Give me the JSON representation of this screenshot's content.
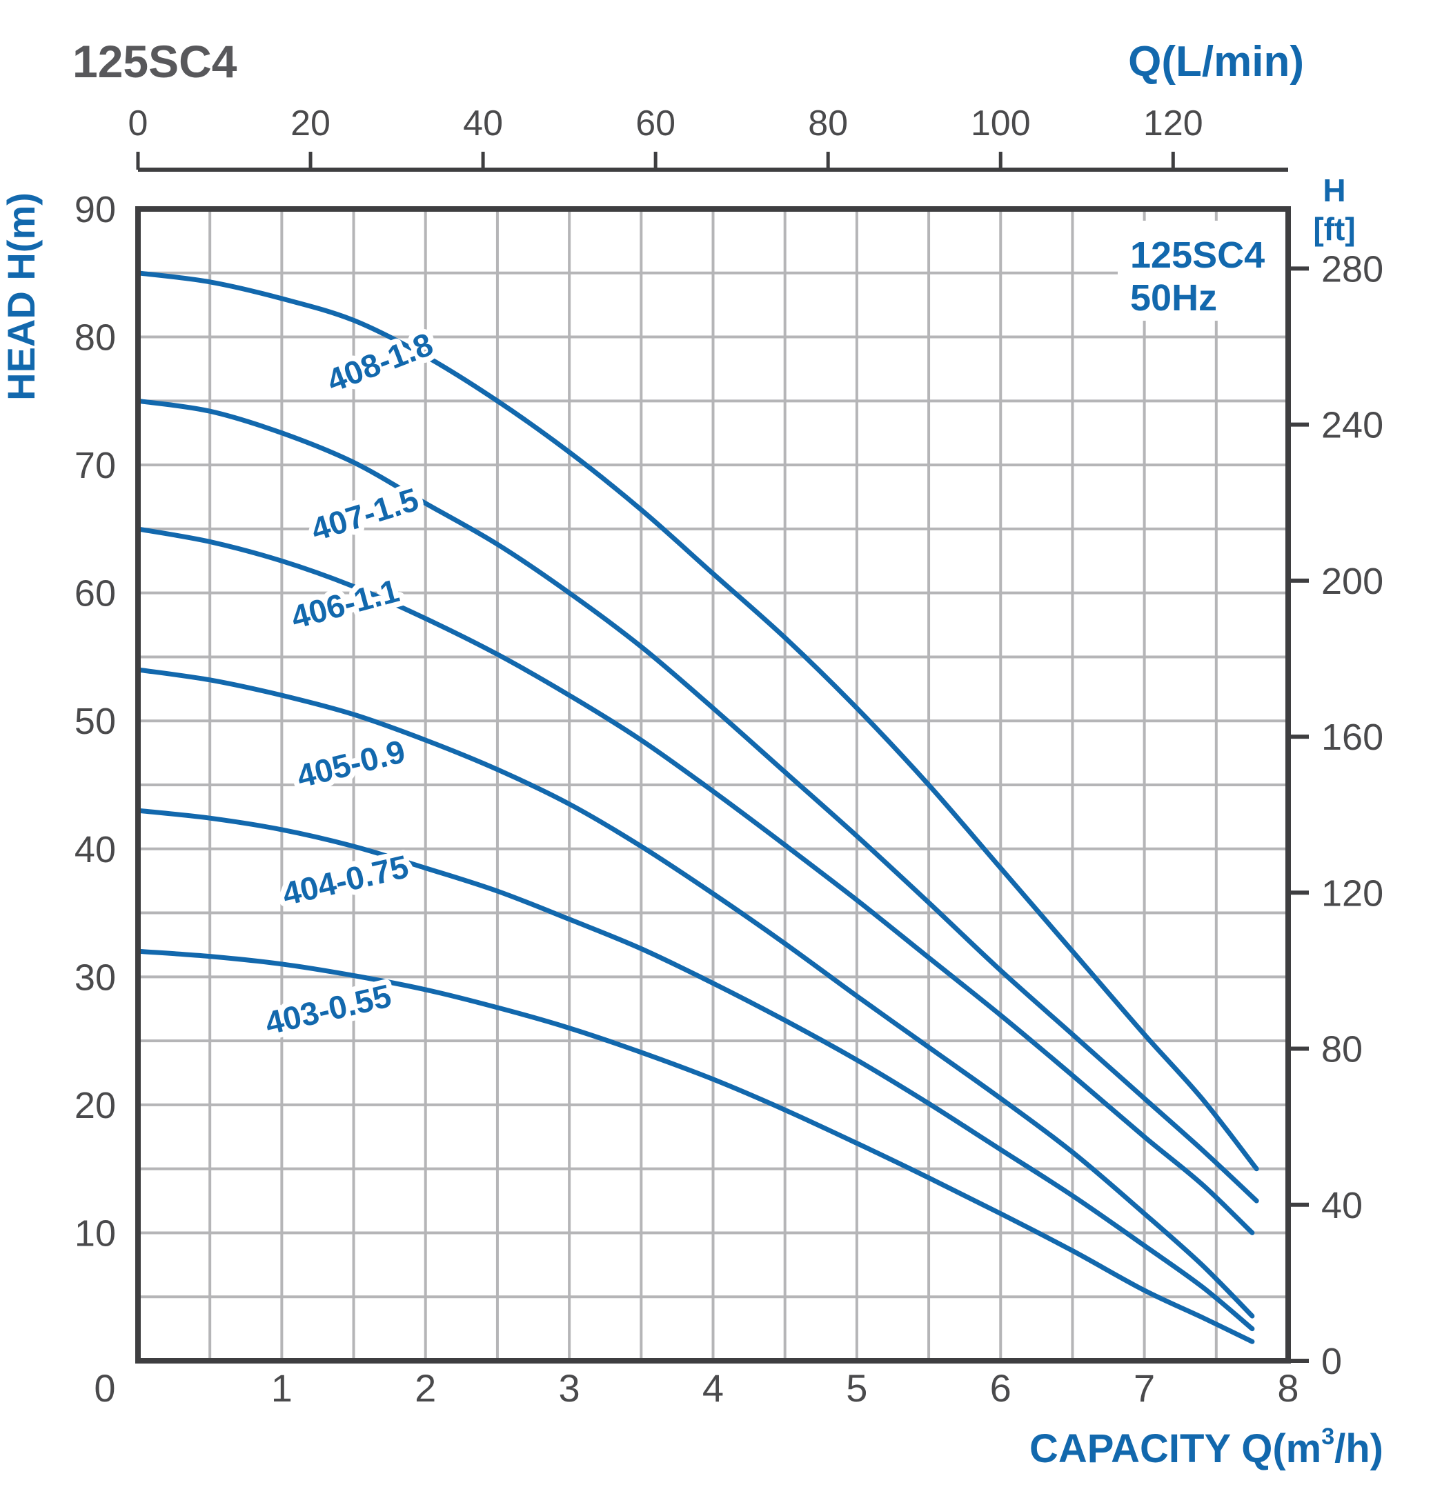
{
  "header": {
    "title": "125SC4",
    "top_axis_label": "Q(L/min)"
  },
  "axes_titles": {
    "left": "HEAD H(m)",
    "right_line1": "H",
    "right_line2": "[ft]",
    "bottom_prefix": "CAPACITY Q(m",
    "bottom_sup": "3",
    "bottom_suffix": "/h)"
  },
  "legend": {
    "line1": "125SC4",
    "line2": "50Hz"
  },
  "colors": {
    "blue": "#1268ad",
    "text_dark": "#4a4a4c",
    "title_gray": "#58585b",
    "grid": "#b5b5b7",
    "border": "#3e3e40",
    "background": "#ffffff"
  },
  "chart_data": {
    "type": "line",
    "title": "125SC4",
    "legend_entries": [
      "125SC4",
      "50Hz"
    ],
    "legend_position": "top-right-inside",
    "grid": "on",
    "axes": {
      "top": {
        "label": "Q(L/min)",
        "units": "L/min",
        "range": [
          0,
          133.3
        ],
        "ticks": [
          0,
          20,
          40,
          60,
          80,
          100,
          120
        ]
      },
      "bottom": {
        "label": "CAPACITY Q(m3/h)",
        "units": "m3/h",
        "range": [
          0,
          8
        ],
        "ticks": [
          0,
          1,
          2,
          3,
          4,
          5,
          6,
          7,
          8
        ],
        "grid_step": 0.5
      },
      "left": {
        "label": "HEAD H(m)",
        "units": "m",
        "range": [
          0,
          90
        ],
        "ticks": [
          90,
          80,
          70,
          60,
          50,
          40,
          30,
          20,
          10
        ],
        "grid_step": 5
      },
      "right": {
        "label": "H [ft]",
        "units": "ft",
        "ticks": [
          280,
          240,
          200,
          160,
          120,
          80,
          40,
          0
        ]
      }
    },
    "series": [
      {
        "name": "408-1.8",
        "label_q": 1.71,
        "label_h": 77.2,
        "label_angle": -21,
        "points": [
          [
            0,
            85
          ],
          [
            0.5,
            84.3
          ],
          [
            1,
            83
          ],
          [
            1.5,
            81.3
          ],
          [
            2,
            78.5
          ],
          [
            2.5,
            75
          ],
          [
            3,
            71
          ],
          [
            3.5,
            66.5
          ],
          [
            4,
            61.5
          ],
          [
            4.5,
            56.5
          ],
          [
            5,
            51
          ],
          [
            5.5,
            45
          ],
          [
            6,
            38.5
          ],
          [
            6.5,
            32
          ],
          [
            7,
            25.5
          ],
          [
            7.4,
            20.5
          ],
          [
            7.78,
            15
          ]
        ]
      },
      {
        "name": "407-1.5",
        "label_q": 1.6,
        "label_h": 65.3,
        "label_angle": -17,
        "points": [
          [
            0,
            75
          ],
          [
            0.5,
            74.2
          ],
          [
            1,
            72.5
          ],
          [
            1.5,
            70.2
          ],
          [
            2,
            67
          ],
          [
            2.5,
            63.8
          ],
          [
            3,
            60
          ],
          [
            3.5,
            55.8
          ],
          [
            4,
            51
          ],
          [
            4.5,
            46
          ],
          [
            5,
            41
          ],
          [
            5.5,
            35.8
          ],
          [
            6,
            30.5
          ],
          [
            6.5,
            25.5
          ],
          [
            7,
            20.5
          ],
          [
            7.4,
            16.5
          ],
          [
            7.78,
            12.5
          ]
        ]
      },
      {
        "name": "406-1.1",
        "label_q": 1.46,
        "label_h": 58.3,
        "label_angle": -15,
        "points": [
          [
            0,
            65
          ],
          [
            0.5,
            64
          ],
          [
            1,
            62.5
          ],
          [
            1.5,
            60.5
          ],
          [
            2,
            58
          ],
          [
            2.5,
            55.2
          ],
          [
            3,
            52
          ],
          [
            3.5,
            48.5
          ],
          [
            4,
            44.5
          ],
          [
            4.5,
            40.3
          ],
          [
            5,
            36
          ],
          [
            5.5,
            31.5
          ],
          [
            6,
            27
          ],
          [
            6.5,
            22.3
          ],
          [
            7,
            17.5
          ],
          [
            7.4,
            13.8
          ],
          [
            7.75,
            10
          ]
        ]
      },
      {
        "name": "405-0.9",
        "label_q": 1.5,
        "label_h": 45.8,
        "label_angle": -14,
        "points": [
          [
            0,
            54
          ],
          [
            0.5,
            53.2
          ],
          [
            1,
            52
          ],
          [
            1.5,
            50.5
          ],
          [
            2,
            48.5
          ],
          [
            2.5,
            46.2
          ],
          [
            3,
            43.5
          ],
          [
            3.5,
            40.2
          ],
          [
            4,
            36.5
          ],
          [
            4.5,
            32.6
          ],
          [
            5,
            28.5
          ],
          [
            5.5,
            24.5
          ],
          [
            6,
            20.5
          ],
          [
            6.5,
            16.3
          ],
          [
            7,
            11.5
          ],
          [
            7.4,
            7.5
          ],
          [
            7.75,
            3.5
          ]
        ]
      },
      {
        "name": "404-0.75",
        "label_q": 1.46,
        "label_h": 36.7,
        "label_angle": -13,
        "points": [
          [
            0,
            43
          ],
          [
            0.5,
            42.4
          ],
          [
            1,
            41.5
          ],
          [
            1.5,
            40.2
          ],
          [
            2,
            38.5
          ],
          [
            2.5,
            36.7
          ],
          [
            3,
            34.5
          ],
          [
            3.5,
            32.2
          ],
          [
            4,
            29.5
          ],
          [
            4.5,
            26.6
          ],
          [
            5,
            23.5
          ],
          [
            5.5,
            20.1
          ],
          [
            6,
            16.5
          ],
          [
            6.5,
            12.9
          ],
          [
            7,
            9
          ],
          [
            7.4,
            5.8
          ],
          [
            7.75,
            2.5
          ]
        ]
      },
      {
        "name": "403-0.55",
        "label_q": 1.34,
        "label_h": 26.6,
        "label_angle": -13,
        "points": [
          [
            0,
            32
          ],
          [
            0.5,
            31.6
          ],
          [
            1,
            31
          ],
          [
            1.5,
            30.1
          ],
          [
            2,
            29
          ],
          [
            2.5,
            27.6
          ],
          [
            3,
            26
          ],
          [
            3.5,
            24.1
          ],
          [
            4,
            22
          ],
          [
            4.5,
            19.6
          ],
          [
            5,
            17
          ],
          [
            5.5,
            14.3
          ],
          [
            6,
            11.5
          ],
          [
            6.5,
            8.6
          ],
          [
            7,
            5.5
          ],
          [
            7.4,
            3.4
          ],
          [
            7.75,
            1.5
          ]
        ]
      }
    ]
  }
}
